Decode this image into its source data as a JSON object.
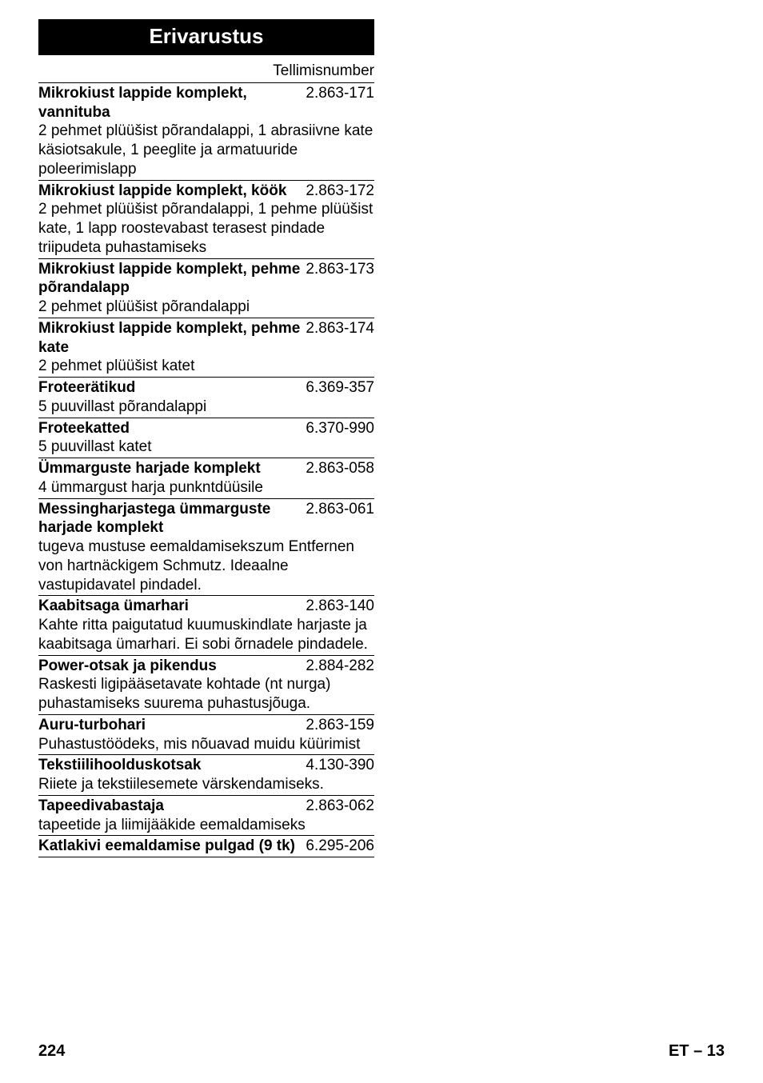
{
  "header": "Erivarustus",
  "order_label": "Tellimisnumber",
  "entries": [
    {
      "title": "Mikrokiust lappide komplekt, vannituba",
      "number": "2.863-171",
      "desc": "2 pehmet plüüšist põrandalappi, 1 abrasiivne kate käsiotsakule, 1 peeglite ja armatuuride poleerimislapp"
    },
    {
      "title": "Mikrokiust lappide komplekt, köök",
      "number": "2.863-172",
      "desc": "2 pehmet plüüšist põrandalappi, 1 pehme plüüšist kate, 1 lapp roostevabast terasest pindade triipudeta puhastamiseks"
    },
    {
      "title": "Mikrokiust lappide komplekt, pehme põrandalapp",
      "number": "2.863-173",
      "desc": "2 pehmet plüüšist põrandalappi"
    },
    {
      "title": "Mikrokiust lappide komplekt, pehme kate",
      "number": "2.863-174",
      "desc": "2 pehmet plüüšist katet"
    },
    {
      "title": "Froteerätikud",
      "number": "6.369-357",
      "desc": "5 puuvillast põrandalappi"
    },
    {
      "title": "Froteekatted",
      "number": "6.370-990",
      "desc": "5 puuvillast katet"
    },
    {
      "title": "Ümmarguste harjade komplekt",
      "number": "2.863-058",
      "desc": "4 ümmargust harja punkntdüüsile"
    },
    {
      "title": "Messingharjastega ümmarguste harjade komplekt",
      "number": "2.863-061",
      "desc": "tugeva mustuse eemaldamisekszum Entfernen von hartnäckigem Schmutz. Ideaalne vastupidavatel pindadel."
    },
    {
      "title": "Kaabitsaga ümarhari",
      "number": "2.863-140",
      "desc": "Kahte ritta paigutatud kuumuskindlate harjaste ja kaabitsaga ümarhari. Ei sobi õrnadele pindadele."
    },
    {
      "title": "Power-otsak ja pikendus",
      "number": "2.884-282",
      "desc": "Raskesti ligipääsetavate kohtade (nt nurga) puhastamiseks suurema puhastusjõuga."
    },
    {
      "title": "Auru-turbohari",
      "number": "2.863-159",
      "desc": "Puhastustöödeks, mis nõuavad muidu küürimist"
    },
    {
      "title": "Tekstiilihoolduskotsak",
      "number": "4.130-390",
      "desc": "Riiete ja tekstiilesemete värskendamiseks."
    },
    {
      "title": "Tapeedivabastaja",
      "number": "2.863-062",
      "desc": "tapeetide ja liimijääkide eemaldamiseks"
    },
    {
      "title": "Katlakivi eemaldamise pulgad (9 tk)",
      "number": "6.295-206",
      "desc": ""
    }
  ],
  "footer": {
    "page_number": "224",
    "lang_page": "ET – 13"
  }
}
